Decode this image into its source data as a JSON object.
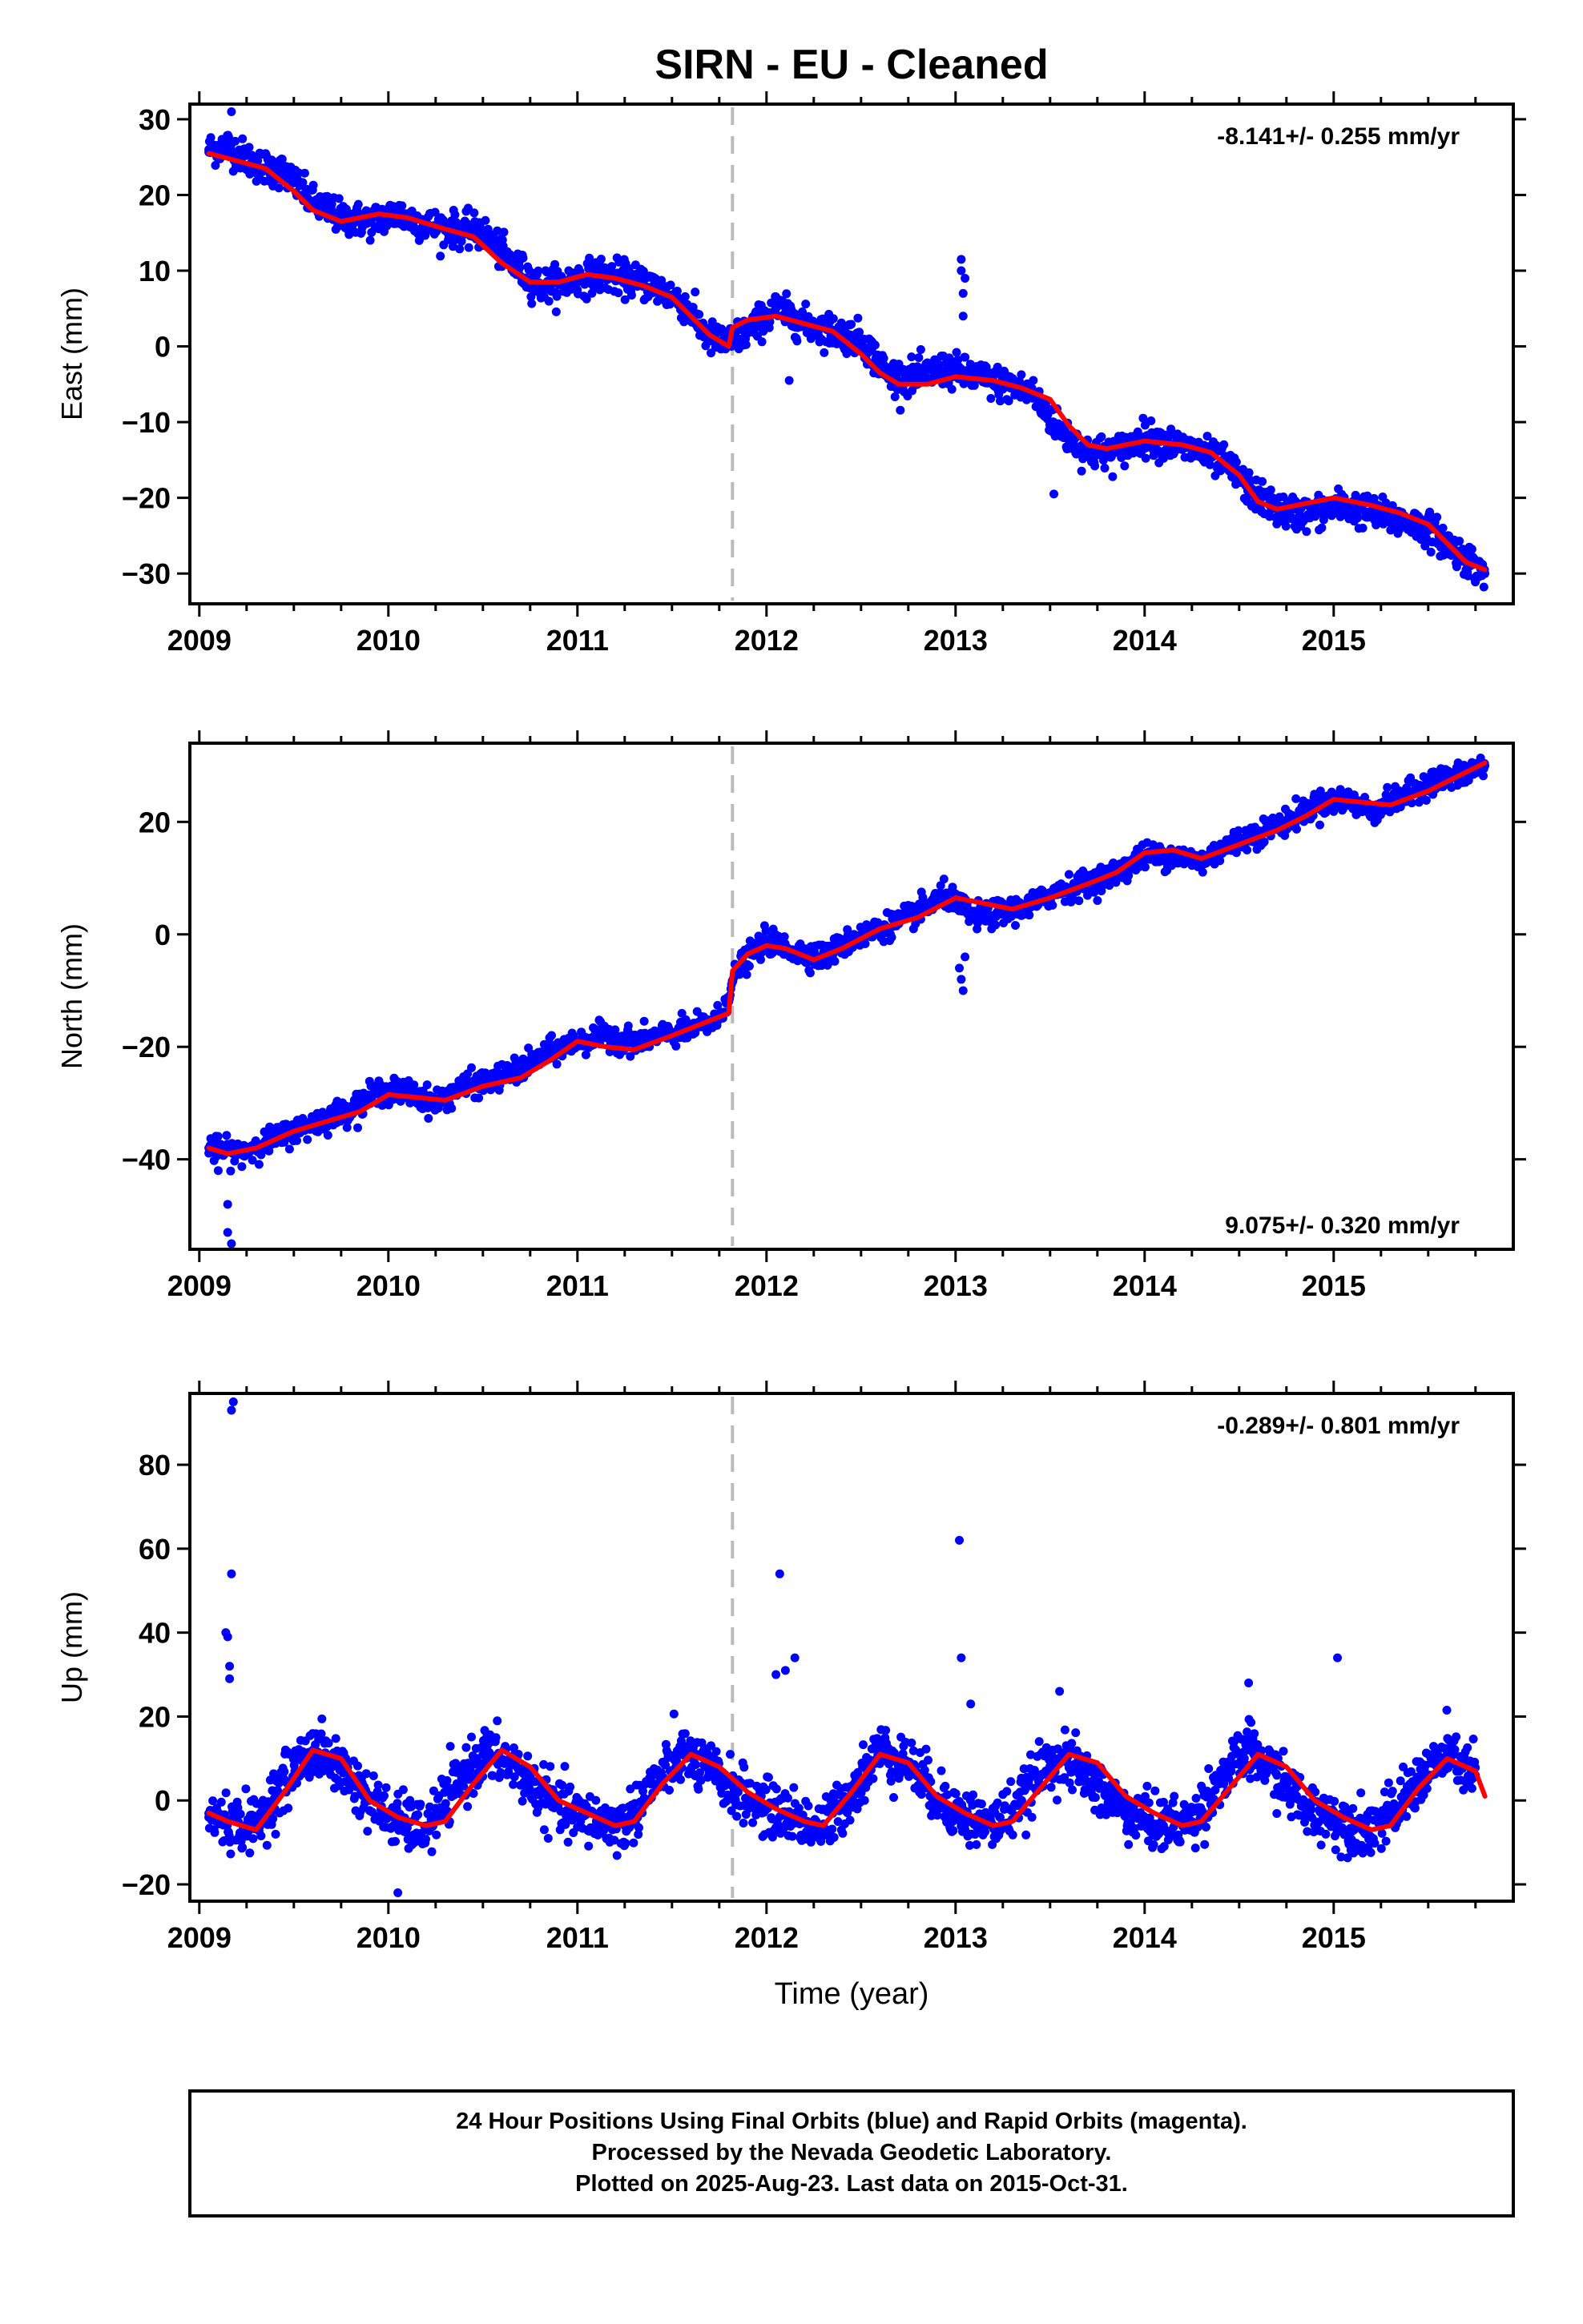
{
  "title": "SIRN  - EU - Cleaned",
  "colors": {
    "final_orbits": "#0000ff",
    "model": "#ff0000",
    "discontinuity": "#bbbbbb"
  },
  "chart_data": [
    {
      "type": "scatter",
      "panel": "east",
      "ylabel": "East (mm)",
      "xlabel": "",
      "xlim": [
        2008.95,
        2015.95
      ],
      "ylim": [
        -34,
        32
      ],
      "yticks": [
        30,
        20,
        10,
        0,
        -10,
        -20,
        -30
      ],
      "ytick_labels": [
        "30",
        "20",
        "10",
        "0",
        "−10",
        "−20",
        "−30"
      ],
      "xticks": [
        2009,
        2010,
        2011,
        2012,
        2013,
        2014,
        2015
      ],
      "xtick_labels": [
        "2009",
        "2010",
        "2011",
        "2012",
        "2013",
        "2014",
        "2015"
      ],
      "rate_text": "-8.141+/- 0.255 mm/yr",
      "discontinuity": 2011.82,
      "series": [
        {
          "role": "observations",
          "x": [
            2009.05,
            2009.15,
            2009.3,
            2009.45,
            2009.6,
            2009.75,
            2009.9,
            2010.05,
            2010.2,
            2010.35,
            2010.5,
            2010.65,
            2010.8,
            2010.95,
            2011.1,
            2011.25,
            2011.4,
            2011.55,
            2011.7,
            2011.8,
            2011.9,
            2012.05,
            2012.2,
            2012.35,
            2012.5,
            2012.65,
            2012.8,
            2012.95,
            2013.1,
            2013.25,
            2013.4,
            2013.55,
            2013.7,
            2013.85,
            2014.0,
            2014.15,
            2014.3,
            2014.45,
            2014.6,
            2014.75,
            2014.9,
            2015.05,
            2015.2,
            2015.35,
            2015.5,
            2015.65,
            2015.8
          ],
          "y": [
            26,
            26.5,
            24,
            23,
            19,
            17,
            16.5,
            17.5,
            16,
            15.5,
            15,
            11,
            8,
            8.5,
            9.5,
            9,
            8,
            6,
            1,
            0.5,
            2,
            5,
            3,
            2,
            1,
            -4,
            -4,
            -3,
            -4,
            -5,
            -6,
            -11,
            -14,
            -14,
            -12,
            -13,
            -14,
            -16,
            -20,
            -22,
            -22,
            -21,
            -22,
            -23,
            -24,
            -27,
            -30
          ]
        },
        {
          "role": "outliers",
          "x": [
            2009.17,
            2013.03,
            2013.03,
            2013.04,
            2013.04,
            2013.05,
            2013.52,
            2012.12
          ],
          "y": [
            31,
            11.5,
            10,
            7,
            4,
            9,
            -19.5,
            -4.5
          ]
        },
        {
          "role": "model",
          "x": [
            2009.05,
            2009.2,
            2009.35,
            2009.5,
            2009.6,
            2009.75,
            2009.95,
            2010.1,
            2010.3,
            2010.45,
            2010.6,
            2010.75,
            2010.9,
            2011.05,
            2011.2,
            2011.35,
            2011.5,
            2011.6,
            2011.7,
            2011.8,
            2011.82,
            2011.9,
            2012.05,
            2012.2,
            2012.35,
            2012.5,
            2012.6,
            2012.7,
            2012.85,
            2013.0,
            2013.2,
            2013.35,
            2013.5,
            2013.6,
            2013.7,
            2013.8,
            2014.0,
            2014.2,
            2014.35,
            2014.5,
            2014.6,
            2014.7,
            2014.8,
            2015.0,
            2015.2,
            2015.35,
            2015.5,
            2015.6,
            2015.7,
            2015.8
          ],
          "y": [
            25.5,
            24.5,
            23.5,
            20.5,
            18,
            16.5,
            17.5,
            17,
            15.5,
            14.5,
            11,
            8.5,
            8.5,
            9.5,
            9,
            8,
            6.5,
            4,
            1.5,
            0,
            2.5,
            3.5,
            4,
            3,
            2,
            -1,
            -3.5,
            -5,
            -5,
            -4,
            -4.5,
            -5.5,
            -7,
            -10.5,
            -13,
            -13.5,
            -12.5,
            -13,
            -14,
            -17,
            -20.5,
            -21.5,
            -21,
            -20,
            -21,
            -22,
            -23.5,
            -26,
            -28.5,
            -29.5
          ]
        }
      ]
    },
    {
      "type": "scatter",
      "panel": "north",
      "ylabel": "North (mm)",
      "xlabel": "",
      "xlim": [
        2008.95,
        2015.95
      ],
      "ylim": [
        -56,
        34
      ],
      "yticks": [
        20,
        0,
        -20,
        -40
      ],
      "ytick_labels": [
        "20",
        "0",
        "−20",
        "−40"
      ],
      "xticks": [
        2009,
        2010,
        2011,
        2012,
        2013,
        2014,
        2015
      ],
      "xtick_labels": [
        "2009",
        "2010",
        "2011",
        "2012",
        "2013",
        "2014",
        "2015"
      ],
      "rate_text": "9.075+/- 0.320 mm/yr",
      "discontinuity": 2011.82,
      "series": [
        {
          "role": "observations",
          "x": [
            2009.05,
            2009.2,
            2009.35,
            2009.5,
            2009.65,
            2009.8,
            2009.95,
            2010.1,
            2010.25,
            2010.4,
            2010.55,
            2010.7,
            2010.85,
            2011.0,
            2011.15,
            2011.3,
            2011.45,
            2011.6,
            2011.75,
            2011.85,
            2012.0,
            2012.15,
            2012.3,
            2012.45,
            2012.6,
            2012.75,
            2012.95,
            2013.1,
            2013.25,
            2013.4,
            2013.55,
            2013.7,
            2013.85,
            2014.0,
            2014.15,
            2014.3,
            2014.45,
            2014.6,
            2014.75,
            2014.9,
            2015.05,
            2015.2,
            2015.35,
            2015.5,
            2015.65,
            2015.8
          ],
          "y": [
            -38,
            -39,
            -37,
            -35,
            -33,
            -31,
            -28,
            -28,
            -30,
            -27,
            -26,
            -24,
            -21,
            -19,
            -18,
            -19,
            -18,
            -17,
            -15,
            -6,
            -1,
            -3,
            -4,
            -1,
            1,
            3,
            7,
            3,
            4,
            5,
            8,
            9,
            11,
            14,
            14,
            13,
            16,
            18,
            20,
            23,
            24,
            22,
            24,
            27,
            28,
            30
          ]
        },
        {
          "role": "outliers",
          "x": [
            2009.1,
            2009.15,
            2009.15,
            2009.17,
            2013.02,
            2013.03,
            2013.04,
            2013.05
          ],
          "y": [
            -42,
            -48,
            -53,
            -55,
            -6,
            -8,
            -10,
            -4
          ]
        },
        {
          "role": "model",
          "x": [
            2009.05,
            2009.15,
            2009.3,
            2009.5,
            2009.7,
            2009.85,
            2010.0,
            2010.15,
            2010.3,
            2010.5,
            2010.7,
            2010.85,
            2011.0,
            2011.15,
            2011.3,
            2011.5,
            2011.65,
            2011.8,
            2011.82,
            2011.9,
            2012.0,
            2012.1,
            2012.25,
            2012.4,
            2012.6,
            2012.8,
            2013.0,
            2013.15,
            2013.3,
            2013.5,
            2013.7,
            2013.85,
            2014.0,
            2014.15,
            2014.3,
            2014.5,
            2014.7,
            2014.85,
            2015.0,
            2015.15,
            2015.3,
            2015.5,
            2015.65,
            2015.8
          ],
          "y": [
            -38,
            -39,
            -38,
            -35,
            -33,
            -31.5,
            -28.5,
            -29,
            -29.5,
            -27,
            -25.5,
            -22.5,
            -19,
            -20,
            -20.5,
            -18,
            -16,
            -14,
            -6.5,
            -3.5,
            -2,
            -2.5,
            -4.5,
            -2.5,
            1,
            3,
            6.5,
            5.5,
            4.5,
            6.5,
            9,
            11,
            14.5,
            15,
            13.5,
            16,
            18.5,
            21,
            24,
            23.5,
            23,
            25.5,
            28,
            30.5
          ]
        }
      ]
    },
    {
      "type": "scatter",
      "panel": "up",
      "ylabel": "Up (mm)",
      "xlabel": "Time (year)",
      "xlim": [
        2008.95,
        2015.95
      ],
      "ylim": [
        -24,
        97
      ],
      "yticks": [
        80,
        60,
        40,
        20,
        0,
        -20
      ],
      "ytick_labels": [
        "80",
        "60",
        "40",
        "20",
        "0",
        "−20"
      ],
      "xticks": [
        2009,
        2010,
        2011,
        2012,
        2013,
        2014,
        2015
      ],
      "xtick_labels": [
        "2009",
        "2010",
        "2011",
        "2012",
        "2013",
        "2014",
        "2015"
      ],
      "rate_text": "-0.289+/- 0.801 mm/yr",
      "discontinuity": 2011.82,
      "series": [
        {
          "role": "observations",
          "x": [
            2009.05,
            2009.15,
            2009.3,
            2009.45,
            2009.6,
            2009.75,
            2009.9,
            2010.05,
            2010.2,
            2010.35,
            2010.5,
            2010.65,
            2010.8,
            2010.95,
            2011.1,
            2011.25,
            2011.4,
            2011.55,
            2011.7,
            2011.85,
            2012.0,
            2012.15,
            2012.3,
            2012.45,
            2012.6,
            2012.75,
            2012.9,
            2013.05,
            2013.2,
            2013.35,
            2013.5,
            2013.65,
            2013.8,
            2013.95,
            2014.1,
            2014.25,
            2014.4,
            2014.55,
            2014.7,
            2014.85,
            2015.0,
            2015.15,
            2015.3,
            2015.45,
            2015.6,
            2015.75
          ],
          "y": [
            -4,
            -5,
            -6,
            5,
            12,
            8,
            0,
            -5,
            -7,
            3,
            11,
            9,
            2,
            -3,
            -5,
            -6,
            4,
            11,
            7,
            2,
            -2,
            -4,
            -7,
            2,
            12,
            9,
            1,
            -4,
            -6,
            0,
            10,
            8,
            1,
            -4,
            -6,
            -5,
            5,
            12,
            6,
            -2,
            -4,
            -7,
            -4,
            5,
            11,
            6
          ]
        },
        {
          "role": "outliers",
          "x": [
            2009.14,
            2009.15,
            2009.16,
            2009.16,
            2009.17,
            2009.17,
            2009.18,
            2012.05,
            2012.07,
            2012.1,
            2012.15,
            2013.02,
            2013.03,
            2013.08,
            2013.55,
            2014.55,
            2015.02,
            2010.05
          ],
          "y": [
            40,
            39,
            29,
            32,
            54,
            93,
            95,
            30,
            54,
            31,
            34,
            62,
            34,
            23,
            26,
            28,
            34,
            -22
          ]
        },
        {
          "role": "model",
          "x": [
            2009.05,
            2009.15,
            2009.3,
            2009.45,
            2009.6,
            2009.75,
            2009.9,
            2010.05,
            2010.2,
            2010.3,
            2010.45,
            2010.6,
            2010.75,
            2010.9,
            2011.05,
            2011.2,
            2011.3,
            2011.45,
            2011.6,
            2011.75,
            2011.9,
            2012.05,
            2012.2,
            2012.3,
            2012.45,
            2012.6,
            2012.75,
            2012.9,
            2013.05,
            2013.2,
            2013.3,
            2013.45,
            2013.6,
            2013.75,
            2013.9,
            2014.05,
            2014.2,
            2014.3,
            2014.45,
            2014.6,
            2014.75,
            2014.9,
            2015.05,
            2015.2,
            2015.3,
            2015.45,
            2015.6,
            2015.75,
            2015.8
          ],
          "y": [
            -3,
            -5,
            -7,
            2,
            12,
            10,
            0,
            -4,
            -6,
            -5,
            4,
            12,
            8,
            0,
            -3,
            -6,
            -5,
            4,
            11,
            8,
            2,
            -2,
            -5,
            -6,
            2,
            11,
            9,
            1,
            -3,
            -6,
            -5,
            3,
            11,
            9,
            1,
            -3,
            -6,
            -5,
            3,
            11,
            8,
            0,
            -4,
            -7,
            -6,
            3,
            10,
            7,
            1
          ]
        }
      ]
    }
  ],
  "footer": {
    "line1": "24 Hour Positions Using Final Orbits (blue) and Rapid Orbits (magenta).",
    "line2": "Processed by the Nevada Geodetic Laboratory.",
    "line3": "Plotted on 2025-Aug-23. Last data on 2015-Oct-31."
  }
}
